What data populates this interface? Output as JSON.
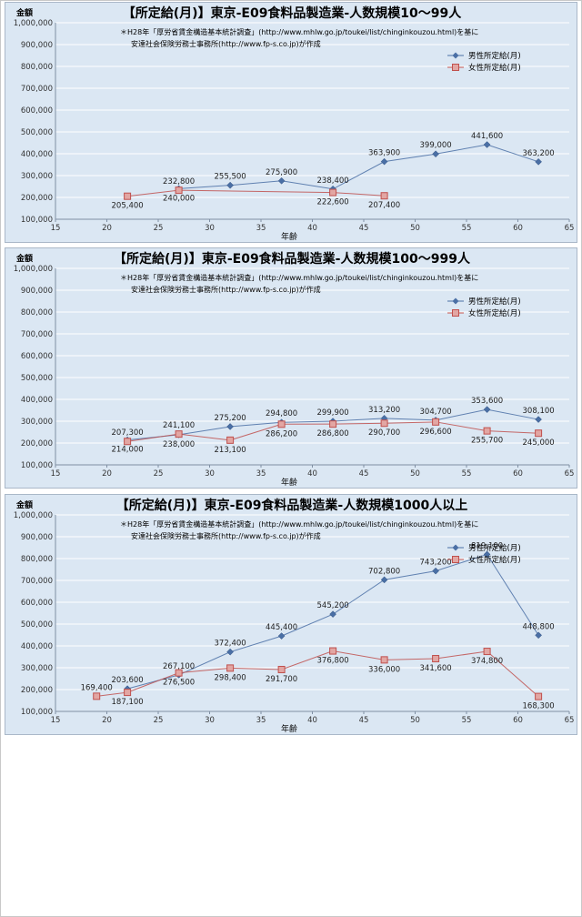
{
  "chart_data": [
    {
      "type": "line",
      "title": "【所定給(月)】東京-E09食料品製造業-人数規模10～99人",
      "ylabel": "金額",
      "xlabel": "年齢",
      "xlim": [
        15,
        65
      ],
      "ylim": [
        100000,
        1000000
      ],
      "x_ticks": [
        "15",
        "20",
        "25",
        "30",
        "35",
        "40",
        "45",
        "50",
        "55",
        "60",
        "65"
      ],
      "y_ticks": [
        "100,000",
        "200,000",
        "300,000",
        "400,000",
        "500,000",
        "600,000",
        "700,000",
        "800,000",
        "900,000",
        "1,000,000"
      ],
      "note_line1": "＊H28年「厚労省賃金構造基本統計調査」(http://www.mhlw.go.jp/toukei/list/chinginkouzou.html)を基に",
      "note_line2": "安達社会保険労務士事務所(http://www.fp-s.co.jp)が作成",
      "grid": true,
      "legend_position": "top-right",
      "series": [
        {
          "name": "男性所定給(月)",
          "color": "#4a6fa5",
          "marker": "diamond",
          "x": [
            27,
            32,
            37,
            42,
            47,
            52,
            57,
            62
          ],
          "values": [
            240000,
            255500,
            275900,
            238400,
            363900,
            399000,
            441600,
            363200
          ],
          "labels": [
            "240,000",
            "255,500",
            "275,900",
            "238,400",
            "363,900",
            "399,000",
            "441,600",
            "363,200"
          ],
          "label_pos": [
            "below",
            "above",
            "above",
            "above",
            "above",
            "above",
            "above",
            "above"
          ]
        },
        {
          "name": "女性所定給(月)",
          "color": "#c0504d",
          "marker": "square",
          "x": [
            22,
            27,
            42,
            47
          ],
          "values": [
            205400,
            232800,
            222600,
            207400
          ],
          "labels": [
            "205,400",
            "232,800",
            "222,600",
            "207,400"
          ],
          "label_pos": [
            "below",
            "above",
            "below",
            "below"
          ]
        }
      ]
    },
    {
      "type": "line",
      "title": "【所定給(月)】東京-E09食料品製造業-人数規模100～999人",
      "ylabel": "金額",
      "xlabel": "年齢",
      "xlim": [
        15,
        65
      ],
      "ylim": [
        100000,
        1000000
      ],
      "x_ticks": [
        "15",
        "20",
        "25",
        "30",
        "35",
        "40",
        "45",
        "50",
        "55",
        "60",
        "65"
      ],
      "y_ticks": [
        "100,000",
        "200,000",
        "300,000",
        "400,000",
        "500,000",
        "600,000",
        "700,000",
        "800,000",
        "900,000",
        "1,000,000"
      ],
      "note_line1": "＊H28年「厚労省賃金構造基本統計調査」(http://www.mhlw.go.jp/toukei/list/chinginkouzou.html)を基に",
      "note_line2": "安達社会保険労務士事務所(http://www.fp-s.co.jp)が作成",
      "grid": true,
      "legend_position": "top-right",
      "series": [
        {
          "name": "男性所定給(月)",
          "color": "#4a6fa5",
          "marker": "diamond",
          "x": [
            22,
            27,
            32,
            37,
            42,
            47,
            52,
            57,
            62
          ],
          "values": [
            214000,
            238000,
            275200,
            294800,
            299900,
            313200,
            304700,
            353600,
            308100
          ],
          "labels": [
            "214,000",
            "238,000",
            "275,200",
            "294,800",
            "299,900",
            "313,200",
            "304,700",
            "353,600",
            "308,100"
          ],
          "label_pos": [
            "below",
            "below",
            "above",
            "above",
            "above",
            "above",
            "above",
            "above",
            "above"
          ]
        },
        {
          "name": "女性所定給(月)",
          "color": "#c0504d",
          "marker": "square",
          "x": [
            22,
            27,
            32,
            37,
            42,
            47,
            52,
            57,
            62
          ],
          "values": [
            207300,
            241100,
            213100,
            286200,
            286800,
            290700,
            296600,
            255700,
            245000
          ],
          "labels": [
            "207,300",
            "241,100",
            "213,100",
            "286,200",
            "286,800",
            "290,700",
            "296,600",
            "255,700",
            "245,000"
          ],
          "label_pos": [
            "above",
            "above",
            "below",
            "below",
            "below",
            "below",
            "below",
            "below",
            "below"
          ]
        }
      ]
    },
    {
      "type": "line",
      "title": "【所定給(月)】東京-E09食料品製造業-人数規模1000人以上",
      "ylabel": "金額",
      "xlabel": "年齢",
      "xlim": [
        15,
        65
      ],
      "ylim": [
        100000,
        1000000
      ],
      "x_ticks": [
        "15",
        "20",
        "25",
        "30",
        "35",
        "40",
        "45",
        "50",
        "55",
        "60",
        "65"
      ],
      "y_ticks": [
        "100,000",
        "200,000",
        "300,000",
        "400,000",
        "500,000",
        "600,000",
        "700,000",
        "800,000",
        "900,000",
        "1,000,000"
      ],
      "note_line1": "＊H28年「厚労省賃金構造基本統計調査」(http://www.mhlw.go.jp/toukei/list/chinginkouzou.html)を基に",
      "note_line2": "安達社会保険労務士事務所(http://www.fp-s.co.jp)が作成",
      "grid": true,
      "legend_position": "top-right",
      "series": [
        {
          "name": "男性所定給(月)",
          "color": "#4a6fa5",
          "marker": "diamond",
          "x": [
            22,
            27,
            32,
            37,
            42,
            47,
            52,
            57,
            62
          ],
          "values": [
            203600,
            267100,
            372400,
            445400,
            545200,
            702800,
            743200,
            819100,
            448800
          ],
          "labels": [
            "203,600",
            "267,100",
            "372,400",
            "445,400",
            "545,200",
            "702,800",
            "743,200",
            "819,100",
            "448,800"
          ],
          "label_pos": [
            "above",
            "above",
            "above",
            "above",
            "above",
            "above",
            "above",
            "above",
            "above"
          ]
        },
        {
          "name": "女性所定給(月)",
          "color": "#c0504d",
          "marker": "square",
          "x": [
            19,
            22,
            27,
            32,
            37,
            42,
            47,
            52,
            57,
            62
          ],
          "values": [
            169400,
            187100,
            276500,
            298400,
            291700,
            376800,
            336000,
            341600,
            374800,
            168300
          ],
          "labels": [
            "169,400",
            "187,100",
            "276,500",
            "298,400",
            "291,700",
            "376,800",
            "336,000",
            "341,600",
            "374,800",
            "168,300"
          ],
          "label_pos": [
            "above",
            "below",
            "below",
            "below",
            "below",
            "below",
            "below",
            "below",
            "below",
            "below"
          ]
        }
      ]
    }
  ]
}
